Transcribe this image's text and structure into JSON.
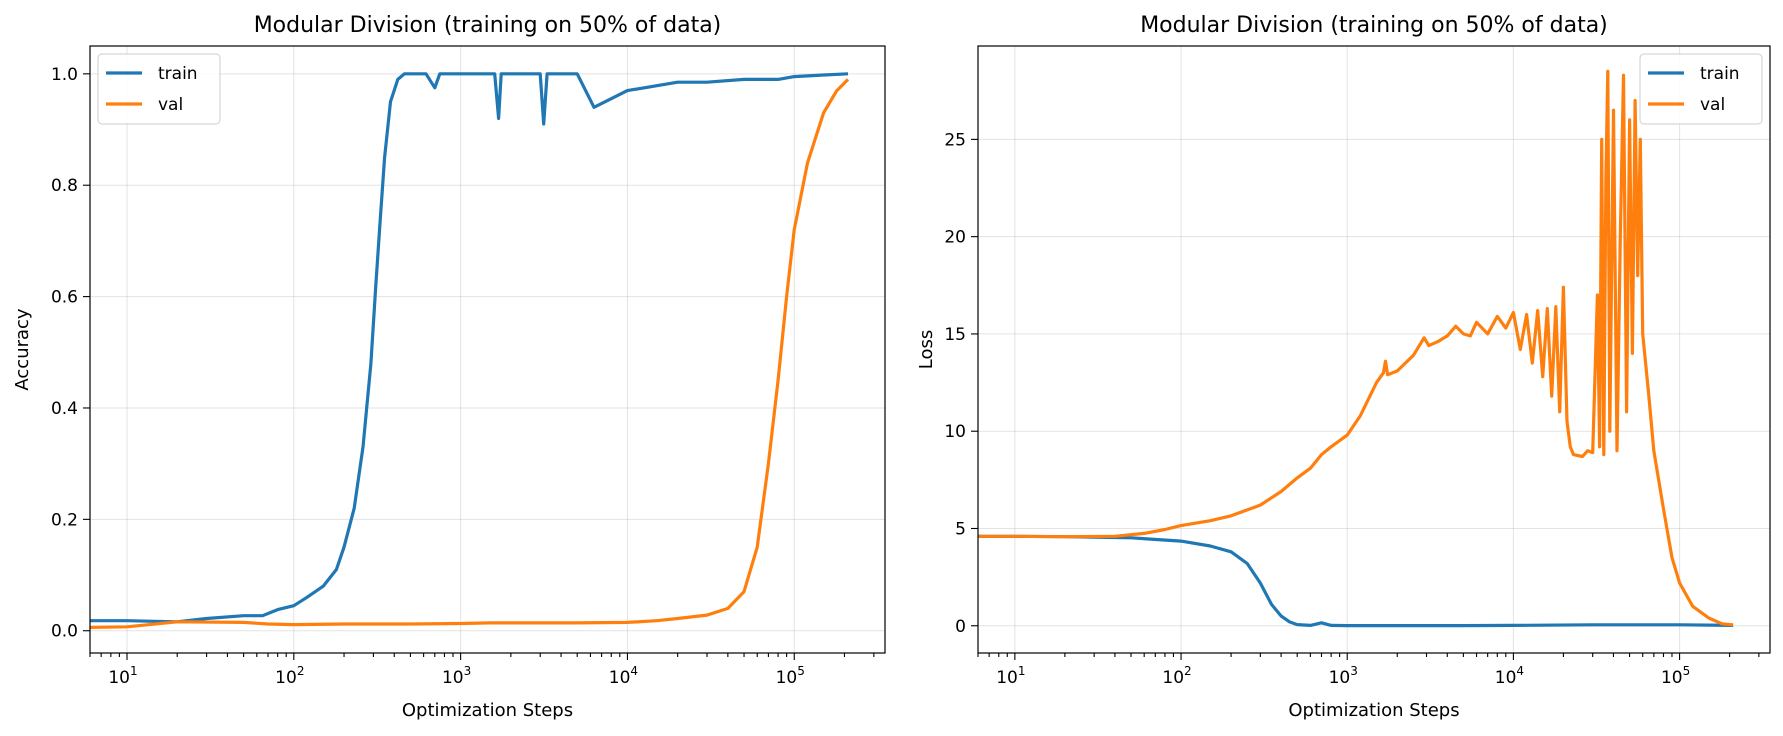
{
  "colors": {
    "train": "#1f77b4",
    "val": "#ff7f0e"
  },
  "chart_data": [
    {
      "type": "line",
      "title": "Modular Division (training on 50% of data)",
      "xlabel": "Optimization Steps",
      "ylabel": "Accuracy",
      "xscale": "log",
      "xlim": [
        6,
        350000
      ],
      "ylim": [
        -0.04,
        1.05
      ],
      "xticks": [
        10,
        100,
        1000,
        10000,
        100000
      ],
      "xtick_labels": [
        [
          "10",
          "1"
        ],
        [
          "10",
          "2"
        ],
        [
          "10",
          "3"
        ],
        [
          "10",
          "4"
        ],
        [
          "10",
          "5"
        ]
      ],
      "yticks": [
        0.0,
        0.2,
        0.4,
        0.6,
        0.8,
        1.0
      ],
      "ytick_labels": [
        "0.0",
        "0.2",
        "0.4",
        "0.6",
        "0.8",
        "1.0"
      ],
      "grid": true,
      "legend": "top-left",
      "series": [
        {
          "name": "train",
          "x": [
            6,
            10,
            20,
            30,
            50,
            65,
            80,
            100,
            120,
            150,
            180,
            200,
            230,
            260,
            290,
            310,
            330,
            350,
            380,
            420,
            460,
            500,
            550,
            620,
            700,
            750,
            1000,
            1600,
            1690,
            1750,
            3000,
            3150,
            3300,
            5000,
            6300,
            10000,
            20000,
            30000,
            50000,
            80000,
            100000,
            150000,
            210000
          ],
          "y": [
            0.018,
            0.018,
            0.016,
            0.022,
            0.027,
            0.027,
            0.038,
            0.045,
            0.06,
            0.08,
            0.11,
            0.15,
            0.22,
            0.33,
            0.48,
            0.62,
            0.74,
            0.85,
            0.95,
            0.99,
            1.0,
            1.0,
            1.0,
            1.0,
            0.975,
            1.0,
            1.0,
            1.0,
            0.92,
            1.0,
            1.0,
            0.91,
            1.0,
            1.0,
            0.94,
            0.97,
            0.985,
            0.985,
            0.99,
            0.99,
            0.995,
            0.998,
            1.0
          ]
        },
        {
          "name": "val",
          "x": [
            6,
            10,
            20,
            50,
            70,
            100,
            200,
            500,
            1000,
            1500,
            3000,
            5000,
            10000,
            15000,
            20000,
            30000,
            40000,
            50000,
            60000,
            70000,
            80000,
            90000,
            100000,
            120000,
            150000,
            180000,
            210000
          ],
          "y": [
            0.006,
            0.007,
            0.016,
            0.015,
            0.012,
            0.011,
            0.012,
            0.012,
            0.013,
            0.014,
            0.014,
            0.014,
            0.015,
            0.018,
            0.022,
            0.028,
            0.04,
            0.07,
            0.15,
            0.3,
            0.45,
            0.6,
            0.72,
            0.84,
            0.93,
            0.97,
            0.99
          ]
        }
      ]
    },
    {
      "type": "line",
      "title": "Modular Division (training on 50% of data)",
      "xlabel": "Optimization Steps",
      "ylabel": "Loss",
      "xscale": "log",
      "xlim": [
        6,
        350000
      ],
      "ylim": [
        -1.4,
        29.8
      ],
      "xticks": [
        10,
        100,
        1000,
        10000,
        100000
      ],
      "xtick_labels": [
        [
          "10",
          "1"
        ],
        [
          "10",
          "2"
        ],
        [
          "10",
          "3"
        ],
        [
          "10",
          "4"
        ],
        [
          "10",
          "5"
        ]
      ],
      "yticks": [
        0,
        5,
        10,
        15,
        20,
        25
      ],
      "ytick_labels": [
        "0",
        "5",
        "10",
        "15",
        "20",
        "25"
      ],
      "grid": true,
      "legend": "top-right",
      "series": [
        {
          "name": "train",
          "x": [
            6,
            10,
            20,
            50,
            100,
            150,
            200,
            250,
            300,
            350,
            400,
            450,
            500,
            600,
            700,
            800,
            1000,
            1700,
            3100,
            5000,
            10000,
            30000,
            100000,
            210000
          ],
          "y": [
            4.6,
            4.6,
            4.58,
            4.52,
            4.35,
            4.1,
            3.8,
            3.2,
            2.2,
            1.1,
            0.5,
            0.2,
            0.06,
            0.02,
            0.15,
            0.02,
            0.01,
            0.01,
            0.01,
            0.01,
            0.02,
            0.05,
            0.05,
            0.02
          ]
        },
        {
          "name": "val",
          "x": [
            6,
            10,
            20,
            40,
            60,
            80,
            100,
            150,
            200,
            300,
            400,
            500,
            600,
            700,
            800,
            1000,
            1200,
            1500,
            1650,
            1700,
            1750,
            2000,
            2500,
            2900,
            3100,
            3500,
            4000,
            4500,
            5000,
            5500,
            6000,
            7000,
            8000,
            9000,
            10000,
            11000,
            12000,
            13000,
            14000,
            15000,
            16000,
            17000,
            18000,
            19000,
            20000,
            21000,
            22000,
            23000,
            26000,
            28000,
            30000,
            32000,
            33000,
            34000,
            35000,
            36000,
            37000,
            38000,
            40000,
            42000,
            44000,
            46000,
            48000,
            50000,
            52000,
            54000,
            56000,
            58000,
            60000,
            65000,
            70000,
            80000,
            90000,
            100000,
            120000,
            150000,
            180000,
            210000
          ],
          "y": [
            4.6,
            4.6,
            4.58,
            4.6,
            4.75,
            4.95,
            5.15,
            5.4,
            5.65,
            6.2,
            6.9,
            7.6,
            8.1,
            8.8,
            9.2,
            9.8,
            10.8,
            12.5,
            13.0,
            13.6,
            12.9,
            13.1,
            13.9,
            14.8,
            14.4,
            14.6,
            14.9,
            15.4,
            15.0,
            14.9,
            15.6,
            15.0,
            15.9,
            15.3,
            16.1,
            14.2,
            16.0,
            13.5,
            16.2,
            12.8,
            16.3,
            11.8,
            16.4,
            11.0,
            17.4,
            10.5,
            9.2,
            8.8,
            8.7,
            9.0,
            8.9,
            17.0,
            9.2,
            25.0,
            8.8,
            23.0,
            28.5,
            10.0,
            26.5,
            9.0,
            20.0,
            28.3,
            11.0,
            26.0,
            14.0,
            27.0,
            18.0,
            25.0,
            15.0,
            12.0,
            9.0,
            6.0,
            3.5,
            2.2,
            1.0,
            0.4,
            0.1,
            0.05
          ]
        }
      ]
    }
  ]
}
